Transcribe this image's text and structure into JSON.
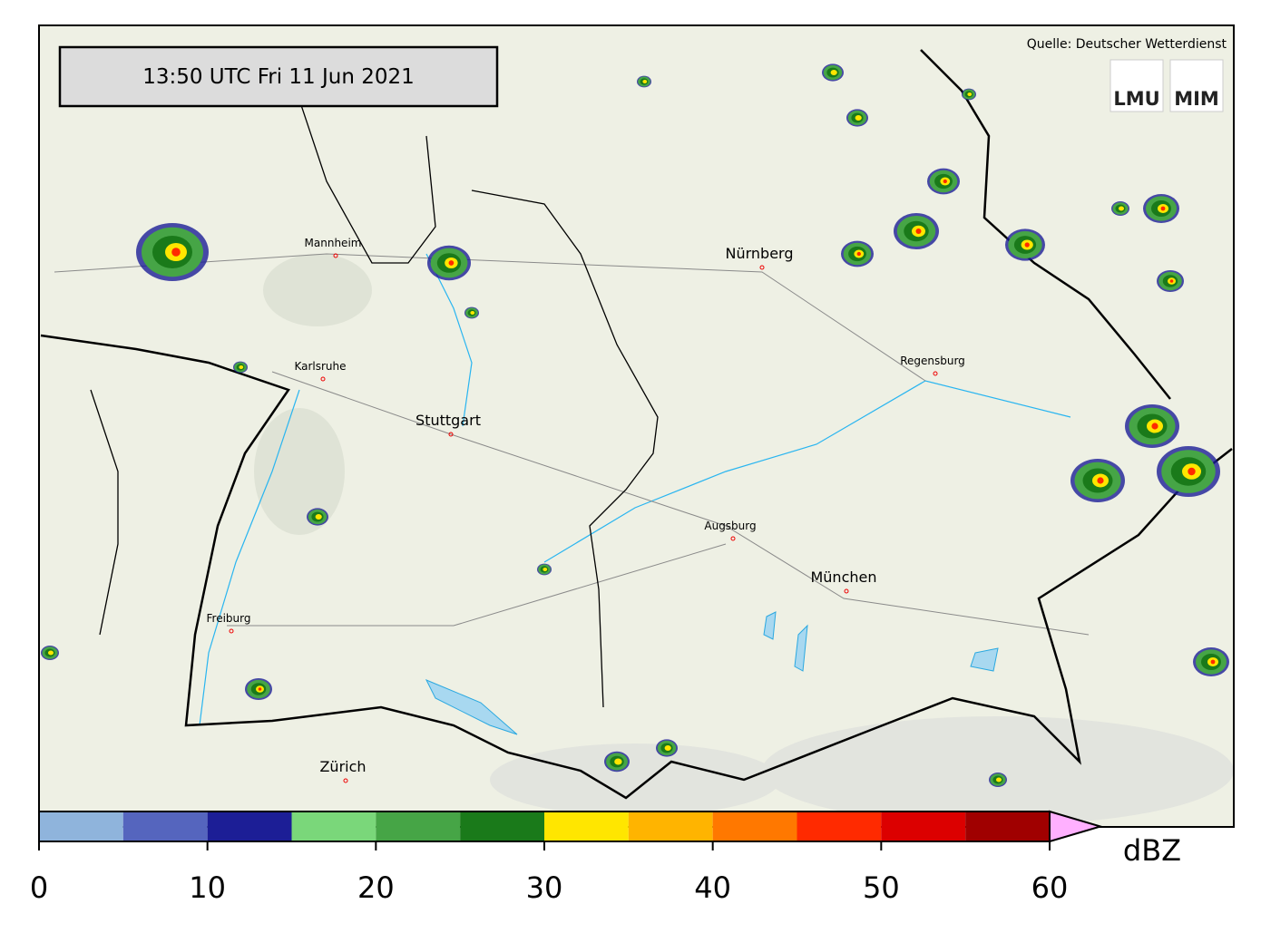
{
  "header": {
    "timestamp": "13:50 UTC  Fri 11 Jun 2021",
    "source": "Quelle: Deutscher Wetterdienst"
  },
  "logos": [
    "LMU",
    "MIM"
  ],
  "cities": [
    {
      "label": "Mannheim"
    },
    {
      "label": "Nürnberg"
    },
    {
      "label": "Karlsruhe"
    },
    {
      "label": "Stuttgart"
    },
    {
      "label": "Regensburg"
    },
    {
      "label": "Augsburg"
    },
    {
      "label": "München"
    },
    {
      "label": "Freiburg"
    },
    {
      "label": "Zürich"
    }
  ],
  "colorbar": {
    "bounds": [
      0,
      5,
      10,
      15,
      20,
      25,
      30,
      35,
      40,
      45,
      50,
      55,
      60
    ],
    "colors": [
      "#8fb4dc",
      "#5565be",
      "#1c1e96",
      "#7ad77a",
      "#46a546",
      "#1a7a1a",
      "#ffe600",
      "#ffb400",
      "#ff7800",
      "#ff2a00",
      "#dc0000",
      "#a00000"
    ],
    "extend_color": "#ffb0ff",
    "ticks": [
      0,
      10,
      20,
      30,
      40,
      50,
      60
    ],
    "unit": "dBZ"
  }
}
